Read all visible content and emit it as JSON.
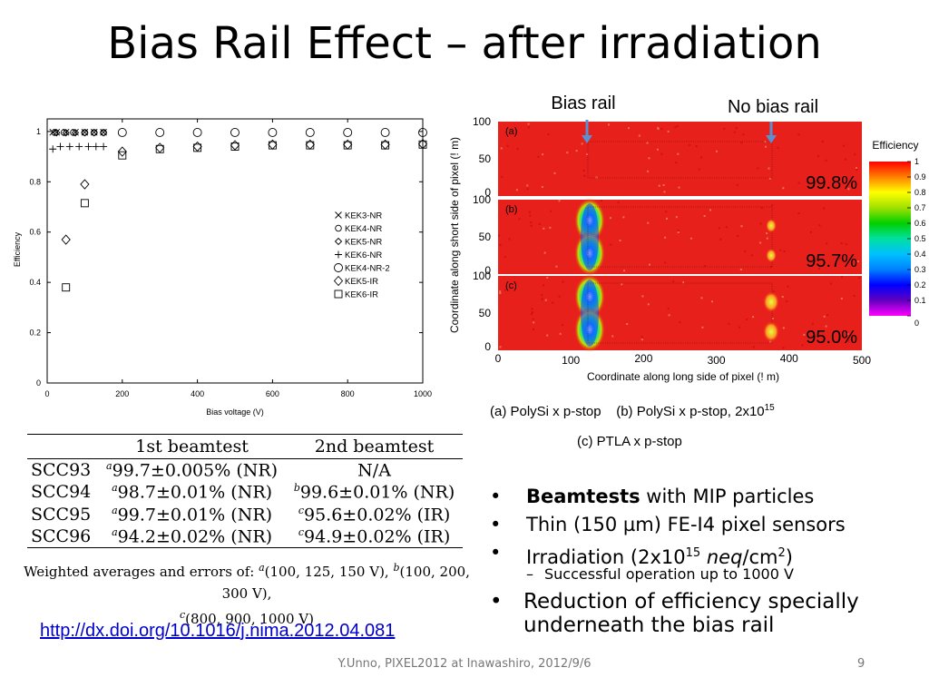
{
  "slide": {
    "title": "Bias Rail Effect – after  irradiation",
    "footer": "Y.Unno, PIXEL2012 at Inawashiro, 2012/9/6",
    "page_number": "9",
    "doi_link": "http://dx.doi.org/10.1016/j.nima.2012.04.081"
  },
  "chart_data": [
    {
      "type": "scatter",
      "xlabel": "Bias voltage (V)",
      "ylabel": "Efficiency",
      "xlim": [
        0,
        1000
      ],
      "ylim": [
        0,
        1.05
      ],
      "x_ticks": [
        "0",
        "200",
        "400",
        "600",
        "800",
        "1000"
      ],
      "y_ticks": [
        "0",
        "0.2",
        "0.4",
        "0.6",
        "0.8",
        "1"
      ],
      "legend_position": "center-right",
      "series": [
        {
          "name": "KEK3-NR",
          "marker": "x",
          "x": [
            15,
            25,
            50,
            75,
            100,
            125,
            150
          ],
          "y": [
            0.997,
            0.997,
            0.997,
            0.997,
            0.997,
            0.997,
            0.997
          ]
        },
        {
          "name": "KEK4-NR",
          "marker": "o-small",
          "x": [
            20,
            45,
            70,
            100,
            125,
            150
          ],
          "y": [
            0.996,
            0.996,
            0.996,
            0.996,
            0.996,
            0.996
          ]
        },
        {
          "name": "KEK5-NR",
          "marker": "diamond-small",
          "x": [
            25,
            50,
            75,
            100,
            125,
            150
          ],
          "y": [
            0.995,
            0.995,
            0.995,
            0.995,
            0.995,
            0.995
          ]
        },
        {
          "name": "KEK6-NR",
          "marker": "+",
          "x": [
            15,
            35,
            60,
            85,
            110,
            130,
            150
          ],
          "y": [
            0.93,
            0.94,
            0.94,
            0.94,
            0.94,
            0.94,
            0.94
          ]
        },
        {
          "name": "KEK4-NR-2",
          "marker": "o",
          "x": [
            200,
            300,
            400,
            500,
            600,
            700,
            800,
            900,
            1000
          ],
          "y": [
            0.996,
            0.996,
            0.996,
            0.996,
            0.996,
            0.996,
            0.996,
            0.996,
            0.996
          ]
        },
        {
          "name": "KEK5-IR",
          "marker": "diamond",
          "x": [
            50,
            100,
            200,
            300,
            400,
            500,
            600,
            700,
            800,
            900,
            1000
          ],
          "y": [
            0.57,
            0.79,
            0.92,
            0.935,
            0.94,
            0.945,
            0.948,
            0.948,
            0.948,
            0.948,
            0.95
          ]
        },
        {
          "name": "KEK6-IR",
          "marker": "square",
          "x": [
            50,
            100,
            200,
            300,
            400,
            500,
            600,
            700,
            800,
            900,
            1000
          ],
          "y": [
            0.38,
            0.715,
            0.905,
            0.93,
            0.935,
            0.94,
            0.945,
            0.945,
            0.945,
            0.945,
            0.948
          ]
        }
      ]
    },
    {
      "type": "heatmap",
      "xlabel": "Coordinate along long side of pixel (! m)",
      "ylabel": "Coordinate along short side of pixel (! m)",
      "x_ticks": [
        "0",
        "100",
        "200",
        "300",
        "400",
        "500"
      ],
      "y_ticks": [
        "0",
        "50",
        "100"
      ],
      "colorbar_title": "Efficiency",
      "colorbar_ticks": [
        "0",
        "0.1",
        "0.2",
        "0.3",
        "0.4",
        "0.5",
        "0.6",
        "0.7",
        "0.8",
        "0.9",
        "1"
      ],
      "panels": [
        {
          "label": "(a)",
          "efficiency": "99.8%"
        },
        {
          "label": "(b)",
          "efficiency": "95.7%"
        },
        {
          "label": "(c)",
          "efficiency": "95.0%"
        }
      ],
      "annotations": [
        "Bias rail",
        "No bias rail"
      ]
    }
  ],
  "captions": {
    "line1_a": "(a) PolySi x p-stop",
    "line1_b": "(b) PolySi x p-stop, 2x10",
    "line1_b_sup": "15",
    "line2": "(c) PTLA x p-stop"
  },
  "table": {
    "headers": [
      "",
      "1st beamtest",
      "2nd beamtest"
    ],
    "rows": [
      {
        "name": "SCC93",
        "m1": "a",
        "v1": "99.7±0.005% (NR)",
        "m2": "",
        "v2": "N/A"
      },
      {
        "name": "SCC94",
        "m1": "a",
        "v1": "98.7±0.01% (NR)",
        "m2": "b",
        "v2": "99.6±0.01% (NR)"
      },
      {
        "name": "SCC95",
        "m1": "a",
        "v1": "99.7±0.01% (NR)",
        "m2": "c",
        "v2": "95.6±0.02% (IR)"
      },
      {
        "name": "SCC96",
        "m1": "a",
        "v1": "94.2±0.02% (NR)",
        "m2": "c",
        "v2": "94.9±0.02% (IR)"
      }
    ],
    "note_prefix": "Weighted averages and errors of: ",
    "note_a_mark": "a",
    "note_a": "(100, 125, 150 V), ",
    "note_b_mark": "b",
    "note_b": "(100, 200, 300 V),",
    "note_c_mark": "c",
    "note_c": "(800, 900, 1000 V)"
  },
  "bullets": {
    "b1_bold": "Beamtests",
    "b1_rest": " with MIP particles",
    "b2": "Thin (150 µm) FE-I4 pixel sensors",
    "b3_pre": "Irradiation (2x10",
    "b3_sup1": "15",
    "b3_ital": "neq",
    "b3_mid": "/cm",
    "b3_sup2": "2",
    "b3_post": ")",
    "sub1": "Successful operation up to 1000 V",
    "b4": "Reduction of efficiency specially underneath the bias rail",
    "bullet_char": "•",
    "dash_char": "–"
  }
}
